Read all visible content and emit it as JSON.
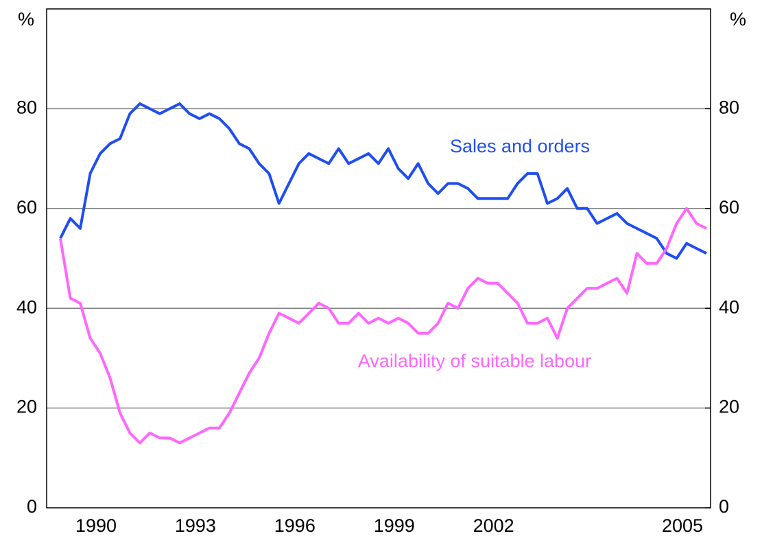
{
  "chart_data": {
    "type": "line",
    "y_label": "%",
    "y2_label": "%",
    "categories": [
      null,
      null,
      null,
      null,
      "1990",
      null,
      null,
      null,
      null,
      null,
      null,
      null,
      null,
      null,
      "1993",
      null,
      null,
      null,
      null,
      null,
      null,
      null,
      null,
      null,
      "1996",
      null,
      null,
      null,
      null,
      null,
      null,
      null,
      null,
      null,
      "1999",
      null,
      null,
      null,
      null,
      null,
      null,
      null,
      null,
      null,
      "2002",
      null,
      null,
      null,
      null,
      null,
      null,
      null,
      null,
      null,
      null,
      null,
      null,
      null,
      null,
      null,
      null,
      null,
      null,
      "2005",
      null,
      null
    ],
    "series": [
      {
        "name": "Sales and orders",
        "color": "#1f4ef0",
        "values": [
          54,
          58,
          56,
          67,
          71,
          73,
          74,
          79,
          81,
          80,
          79,
          80,
          81,
          79,
          78,
          79,
          78,
          76,
          73,
          72,
          69,
          67,
          61,
          65,
          69,
          71,
          70,
          69,
          72,
          69,
          70,
          71,
          69,
          72,
          68,
          66,
          69,
          65,
          63,
          65,
          65,
          64,
          62,
          62,
          62,
          62,
          65,
          67,
          67,
          61,
          62,
          64,
          60,
          60,
          57,
          58,
          59,
          57,
          56,
          55,
          54,
          51,
          50,
          53,
          52,
          51
        ]
      },
      {
        "name": "Availability of suitable labour",
        "color": "#ff66ff",
        "values": [
          54,
          42,
          41,
          34,
          31,
          26,
          19,
          15,
          13,
          15,
          14,
          14,
          13,
          14,
          15,
          16,
          16,
          19,
          23,
          27,
          30,
          35,
          39,
          38,
          37,
          39,
          41,
          40,
          37,
          37,
          39,
          37,
          38,
          37,
          38,
          37,
          35,
          35,
          37,
          41,
          40,
          44,
          46,
          45,
          45,
          43,
          41,
          37,
          37,
          38,
          34,
          40,
          42,
          44,
          44,
          45,
          46,
          43,
          51,
          49,
          49,
          52,
          57,
          60,
          57,
          56
        ]
      }
    ],
    "ylim": [
      0,
      100
    ],
    "yticks": [
      0,
      20,
      40,
      60,
      80
    ],
    "y2lim": [
      0,
      100
    ],
    "y2ticks": [
      0,
      20,
      40,
      60,
      80
    ],
    "grid": true
  }
}
